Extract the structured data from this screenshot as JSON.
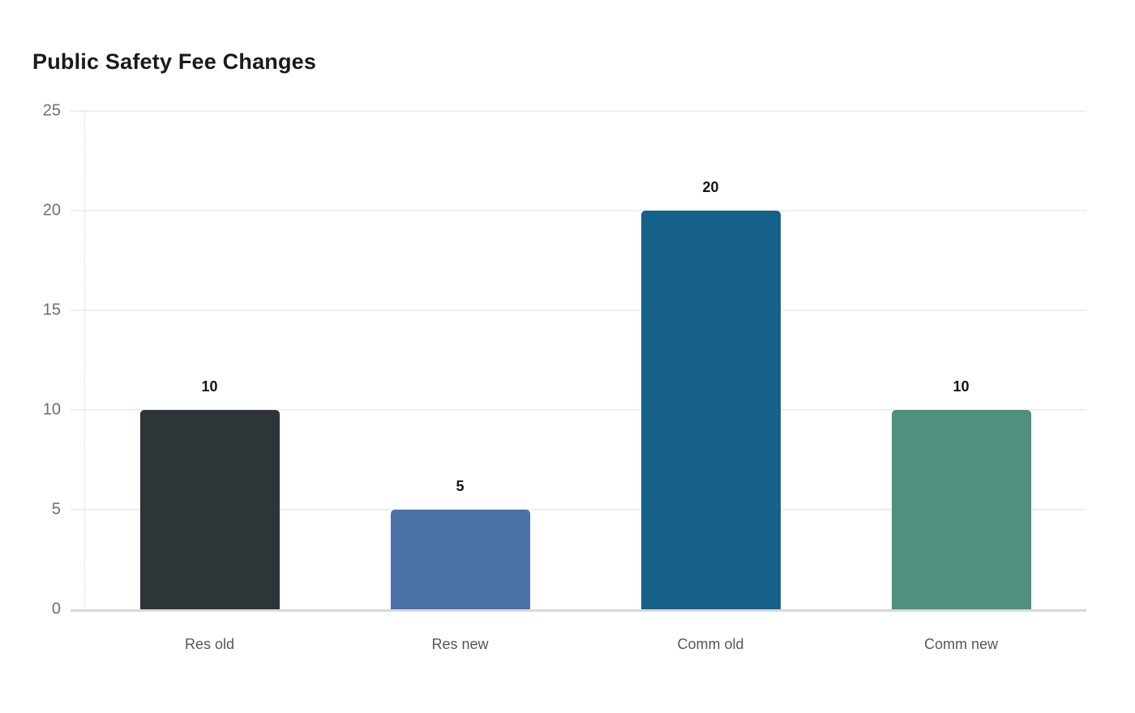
{
  "chart_data": {
    "type": "bar",
    "title": "Public Safety Fee Changes",
    "categories": [
      "Res old",
      "Res new",
      "Comm old",
      "Comm new"
    ],
    "values": [
      10,
      5,
      20,
      10
    ],
    "data_labels": [
      "10",
      "5",
      "20",
      "10"
    ],
    "bar_colors": [
      "#2d3538",
      "#4c70a8",
      "#16618a",
      "#4f907e"
    ],
    "xlabel": "",
    "ylabel": "",
    "ylim": [
      0,
      25
    ],
    "yticks": [
      0,
      5,
      10,
      15,
      20,
      25
    ],
    "grid": "horizontal",
    "legend": "none",
    "background_color": "#ffffff",
    "title_color": "#1a1a1a",
    "tick_label_color": "#6b6f73",
    "category_label_color": "#54575a",
    "value_label_color": "#111417",
    "gridline_color": "#eeeeee",
    "baseline_color": "#d8d8d8"
  }
}
